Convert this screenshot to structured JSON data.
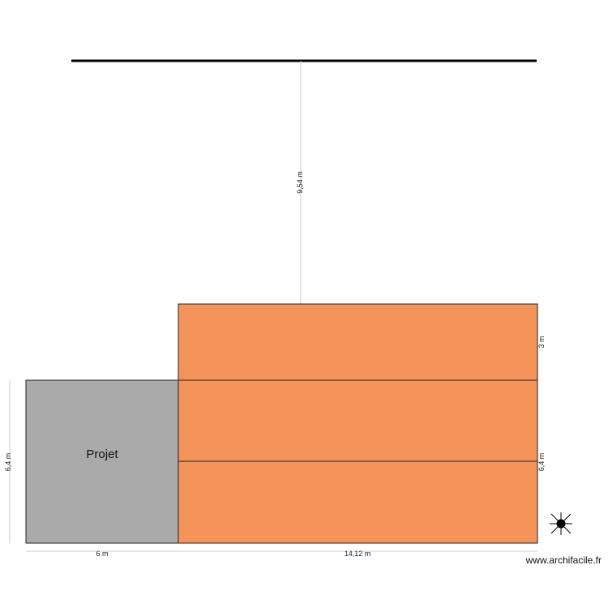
{
  "rooms": [
    {
      "label": "Projet"
    }
  ],
  "dimensions": {
    "top_distance": "9,54 m",
    "right_top": "3 m",
    "right_bottom": "6,4 m",
    "left": "6,4 m",
    "bottom_left": "6 m",
    "bottom_right": "14,12 m"
  },
  "watermark": "www.archifacile.fr"
}
